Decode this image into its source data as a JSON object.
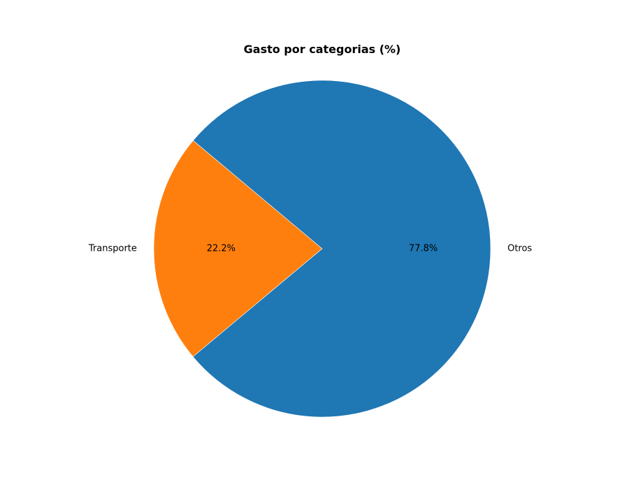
{
  "chart_data": {
    "type": "pie",
    "title": "Gasto por categorias (%)",
    "slices": [
      {
        "label": "Transporte",
        "value": 22.2,
        "pct_label": "22.2%",
        "color": "#ff7f0e"
      },
      {
        "label": "Otros",
        "value": 77.8,
        "pct_label": "77.8%",
        "color": "#1f77b4"
      }
    ],
    "legend": "none"
  }
}
